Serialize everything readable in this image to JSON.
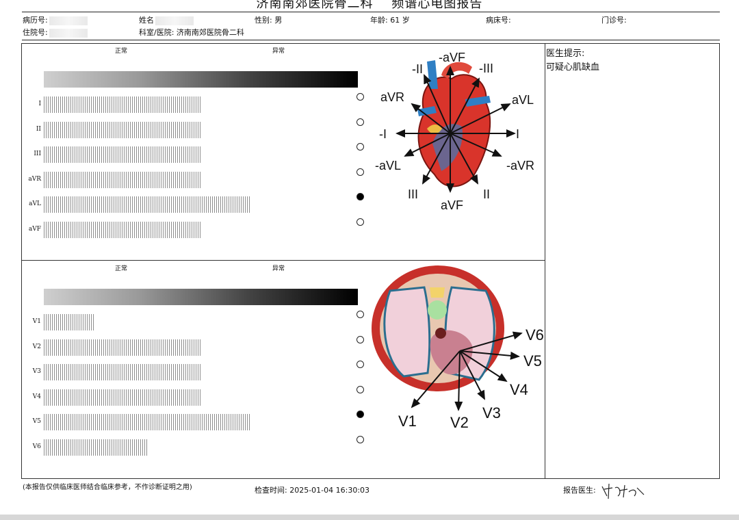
{
  "report": {
    "title": "济南南郊医院骨二科    频谱心电图报告",
    "fields_row1": {
      "record_no": "病历号:",
      "name": "姓名",
      "sex": "性别:  男",
      "age": "年龄:  61  岁",
      "bed": "病床号:",
      "clinic": "门诊号:"
    },
    "fields_row2": {
      "inpatient_no": "住院号:",
      "dept": "科室/医院:  济南南郊医院骨二科"
    }
  },
  "limb_panel": {
    "scale_normal": "正常",
    "scale_abnormal": "异常",
    "leads": [
      {
        "name": "I",
        "level": 0.5,
        "selected": false
      },
      {
        "name": "II",
        "level": 0.5,
        "selected": false
      },
      {
        "name": "III",
        "level": 0.5,
        "selected": false
      },
      {
        "name": "aVR",
        "level": 0.5,
        "selected": false
      },
      {
        "name": "aVL",
        "level": 0.66,
        "selected": true
      },
      {
        "name": "aVF",
        "level": 0.5,
        "selected": false
      }
    ],
    "diagram_labels": {
      "neg_avf": "-aVF",
      "neg_ii": "-II",
      "neg_iii": "-III",
      "avr": "aVR",
      "avl": "aVL",
      "neg_i": "-I",
      "i": "I",
      "neg_avl": "-aVL",
      "neg_avr": "-aVR",
      "iii": "III",
      "avf": "aVF",
      "ii": "II"
    }
  },
  "chest_panel": {
    "scale_normal": "正常",
    "scale_abnormal": "异常",
    "leads": [
      {
        "name": "V1",
        "level": 0.16,
        "selected": false
      },
      {
        "name": "V2",
        "level": 0.5,
        "selected": false
      },
      {
        "name": "V3",
        "level": 0.5,
        "selected": false
      },
      {
        "name": "V4",
        "level": 0.5,
        "selected": false
      },
      {
        "name": "V5",
        "level": 0.66,
        "selected": true
      },
      {
        "name": "V6",
        "level": 0.33,
        "selected": false
      }
    ],
    "diagram_labels": {
      "v1": "V1",
      "v2": "V2",
      "v3": "V3",
      "v4": "V4",
      "v5": "V5",
      "v6": "V6"
    }
  },
  "doctor": {
    "hint_label": "医生提示:",
    "hint_text": "可疑心肌缺血"
  },
  "footer": {
    "disclaimer": "(本报告仅供临床医师结合临床参考，不作诊断证明之用)",
    "exam_time": "检查时间:  2025-01-04  16:30:03",
    "reporter_label": "报告医生:",
    "signature": "牟玉森"
  },
  "colors": {
    "heart_red": "#d9342b",
    "vessel_blue": "#2f7fc4",
    "chest_red": "#c7302a"
  }
}
